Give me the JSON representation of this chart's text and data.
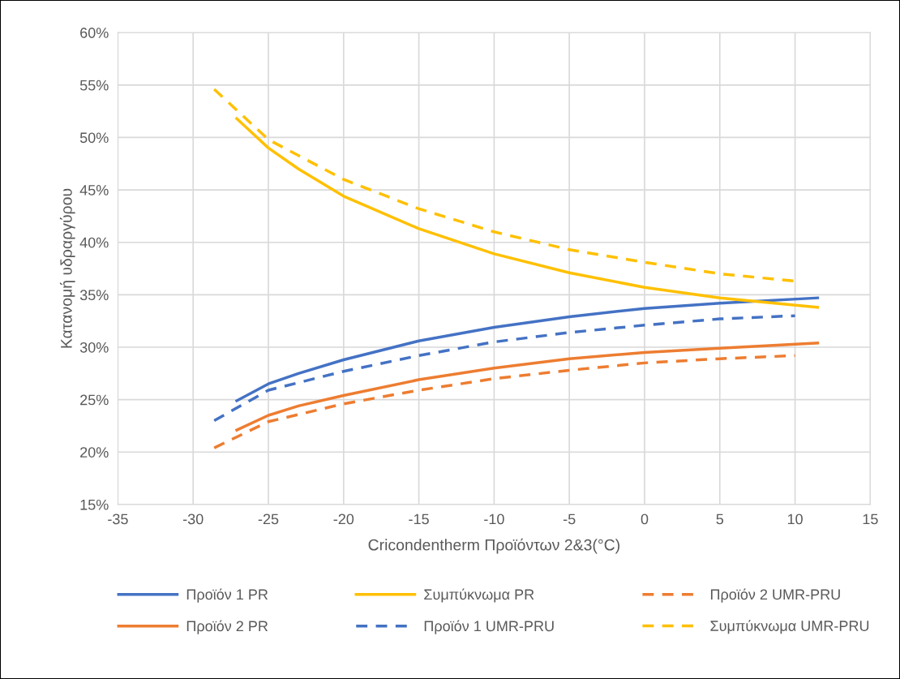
{
  "chart_data": {
    "type": "line",
    "xlabel": "Cricondentherm Προϊόντων 2&3(°C)",
    "ylabel": "Κατανομή υδραργύρου",
    "xlim": [
      -35,
      15
    ],
    "xticks": [
      -35,
      -30,
      -25,
      -20,
      -15,
      -10,
      -5,
      0,
      5,
      10,
      15
    ],
    "ylim": [
      15,
      60
    ],
    "yticks": [
      {
        "value": 15,
        "label": "15%"
      },
      {
        "value": 20,
        "label": "20%"
      },
      {
        "value": 25,
        "label": "25%"
      },
      {
        "value": 30,
        "label": "30%"
      },
      {
        "value": 35,
        "label": "35%"
      },
      {
        "value": 40,
        "label": "40%"
      },
      {
        "value": 45,
        "label": "45%"
      },
      {
        "value": 50,
        "label": "50%"
      },
      {
        "value": 55,
        "label": "55%"
      },
      {
        "value": 60,
        "label": "60%"
      }
    ],
    "grid": true,
    "legend": "bottom",
    "marker": "none",
    "series": [
      {
        "name": "Προϊόν 1 PR",
        "color": "#4472c4",
        "line_style": "solid",
        "x": [
          -27.1,
          -25,
          -23,
          -20,
          -15,
          -10,
          -5,
          0,
          5,
          11.5
        ],
        "values": [
          24.9,
          26.5,
          27.5,
          28.8,
          30.6,
          31.9,
          32.9,
          33.7,
          34.2,
          34.7
        ]
      },
      {
        "name": "Προϊόν 2 PR",
        "color": "#ed7d31",
        "line_style": "solid",
        "x": [
          -27.1,
          -25,
          -23,
          -20,
          -15,
          -10,
          -5,
          0,
          5,
          11.5
        ],
        "values": [
          22.1,
          23.5,
          24.4,
          25.4,
          26.9,
          28.0,
          28.9,
          29.5,
          29.9,
          30.4
        ]
      },
      {
        "name": "Συμπύκνωμα PR",
        "color": "#ffc000",
        "line_style": "solid",
        "x": [
          -27.1,
          -25,
          -23,
          -20,
          -15,
          -10,
          -5,
          0,
          5,
          11.5
        ],
        "values": [
          51.8,
          49.0,
          47.0,
          44.4,
          41.3,
          38.9,
          37.1,
          35.7,
          34.7,
          33.8
        ]
      },
      {
        "name": "Προϊόν 1 UMR-PRU",
        "color": "#4472c4",
        "line_style": "dashed",
        "x": [
          -28.6,
          -25,
          -20,
          -15,
          -10,
          -5,
          0,
          5,
          10
        ],
        "values": [
          23.0,
          25.9,
          27.7,
          29.2,
          30.5,
          31.4,
          32.1,
          32.7,
          33.0
        ]
      },
      {
        "name": "Προϊόν 2 UMR-PRU",
        "color": "#ed7d31",
        "line_style": "dashed",
        "x": [
          -28.6,
          -25,
          -20,
          -15,
          -10,
          -5,
          0,
          5,
          10
        ],
        "values": [
          20.4,
          22.9,
          24.6,
          25.9,
          27.0,
          27.8,
          28.5,
          28.9,
          29.2
        ]
      },
      {
        "name": "Συμπύκνωμα UMR-PRU",
        "color": "#ffc000",
        "line_style": "dashed",
        "x": [
          -28.6,
          -25,
          -20,
          -15,
          -10,
          -5,
          0,
          5,
          10
        ],
        "values": [
          54.6,
          49.8,
          46.0,
          43.2,
          41.0,
          39.3,
          38.1,
          37.0,
          36.3
        ]
      }
    ]
  }
}
